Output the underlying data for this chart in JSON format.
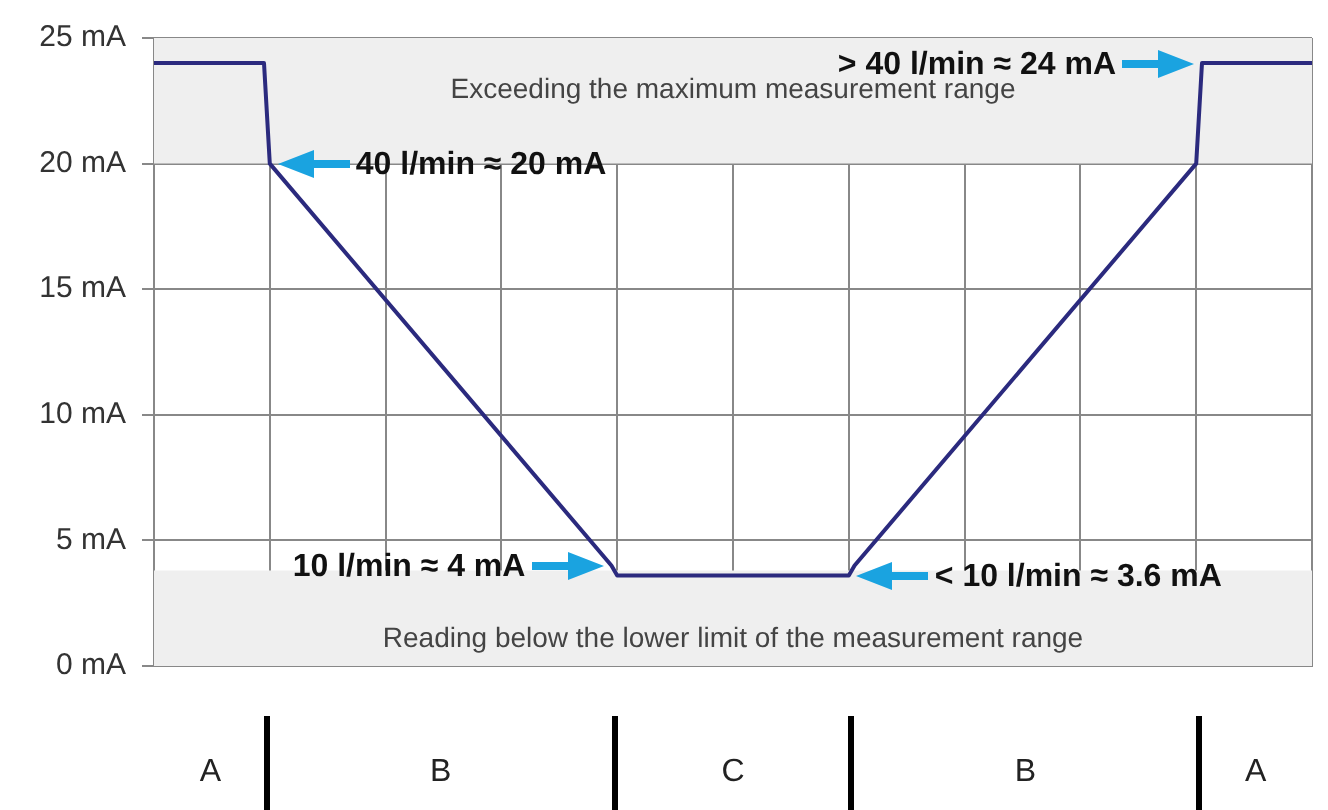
{
  "chart_data": {
    "type": "line",
    "categories": [
      null,
      null,
      null,
      null,
      null,
      null,
      null,
      null,
      null,
      null,
      null,
      null,
      null,
      null,
      null,
      null,
      null,
      null,
      null,
      null,
      null,
      null,
      null,
      null,
      null,
      null,
      null,
      null,
      null,
      null,
      null,
      null,
      null,
      null,
      null,
      null,
      null,
      null,
      null,
      null,
      null,
      null,
      null,
      null,
      null,
      null,
      null,
      null,
      null,
      null,
      null,
      null,
      null,
      null,
      null,
      null,
      null,
      null,
      null,
      null,
      null,
      null,
      null,
      null,
      null,
      null,
      null,
      null,
      null,
      null,
      null,
      null,
      null,
      null,
      null,
      null,
      null,
      null,
      null,
      null,
      null,
      null,
      null,
      null,
      null,
      null,
      null,
      null,
      null,
      null,
      null,
      null,
      null,
      null,
      null,
      null,
      null,
      null,
      null,
      null,
      null,
      null,
      null,
      null,
      null,
      null,
      null,
      null,
      null,
      null,
      null,
      null,
      null,
      null,
      null,
      null,
      null,
      null,
      null,
      null,
      null,
      null,
      null,
      null,
      null,
      null,
      null,
      null,
      null,
      null,
      null,
      null,
      null,
      null,
      null,
      null,
      null,
      null,
      null,
      null,
      null,
      null,
      null,
      null,
      null,
      null,
      null,
      null,
      null,
      null,
      null,
      null,
      null,
      null,
      null,
      null,
      null,
      null,
      null,
      null,
      null,
      null,
      null,
      null,
      null,
      null,
      null,
      null,
      null,
      null,
      null,
      null,
      null,
      null,
      null,
      null,
      null,
      null,
      null,
      null,
      null,
      null,
      null,
      null,
      null,
      null,
      null,
      null,
      null,
      null,
      null,
      null,
      null,
      null,
      null,
      null,
      null,
      null,
      null,
      null,
      null
    ],
    "values": [
      24,
      null,
      null,
      null,
      null,
      null,
      null,
      null,
      null,
      null,
      null,
      null,
      null,
      null,
      null,
      null,
      null,
      null,
      null,
      24,
      20,
      null,
      null,
      null,
      null,
      null,
      null,
      null,
      null,
      null,
      null,
      null,
      null,
      null,
      null,
      null,
      null,
      null,
      null,
      null,
      null,
      null,
      null,
      null,
      null,
      null,
      null,
      null,
      null,
      null,
      null,
      null,
      null,
      null,
      null,
      null,
      null,
      null,
      null,
      null,
      null,
      null,
      null,
      null,
      null,
      null,
      null,
      null,
      null,
      null,
      null,
      null,
      null,
      null,
      null,
      null,
      null,
      null,
      null,
      4,
      3.6,
      null,
      null,
      null,
      null,
      null,
      null,
      null,
      null,
      null,
      null,
      null,
      null,
      null,
      null,
      null,
      null,
      null,
      null,
      null,
      null,
      null,
      null,
      null,
      null,
      null,
      null,
      null,
      null,
      null,
      null,
      null,
      null,
      null,
      null,
      null,
      null,
      null,
      null,
      null,
      3.6,
      4,
      null,
      null,
      null,
      null,
      null,
      null,
      null,
      null,
      null,
      null,
      null,
      null,
      null,
      null,
      null,
      null,
      null,
      null,
      null,
      null,
      null,
      null,
      null,
      null,
      null,
      null,
      null,
      null,
      null,
      null,
      null,
      null,
      null,
      null,
      null,
      null,
      null,
      null,
      null,
      null,
      null,
      null,
      null,
      null,
      null,
      null,
      null,
      null,
      null,
      null,
      null,
      null,
      null,
      null,
      null,
      null,
      null,
      null,
      20,
      24,
      null,
      null,
      null,
      null,
      null,
      null,
      null,
      null,
      null,
      null,
      null,
      null,
      null,
      null,
      null,
      null,
      null,
      null,
      24
    ],
    "color": "#2b2a7e",
    "ylim": [
      0,
      25
    ],
    "yticks": [
      {
        "value": 0,
        "label": "0 mA"
      },
      {
        "value": 5,
        "label": "5 mA"
      },
      {
        "value": 10,
        "label": "10 mA"
      },
      {
        "value": 15,
        "label": "15 mA"
      },
      {
        "value": 20,
        "label": "20 mA"
      },
      {
        "value": 25,
        "label": "25 mA"
      }
    ],
    "grid": true,
    "marker": "none",
    "line_style": "solid",
    "bands": [
      {
        "axis": "y",
        "from": 20,
        "to": 25,
        "label": "Exceeding the maximum measurement range",
        "color": "#efefef"
      },
      {
        "axis": "y",
        "from": 0,
        "to": 3.8,
        "label": "Reading below the lower limit of the measurement range",
        "color": "#efefef"
      }
    ],
    "annotations": [
      {
        "text": "40 l/min ≈ 20 mA",
        "y": 20
      },
      {
        "text": "10 l/min ≈ 4 mA",
        "y": 4
      },
      {
        "text": "< 10 l/min ≈ 3.6 mA",
        "y": 3.6
      },
      "> 40 l/min ≈ 24 mA",
      "A",
      "B",
      "C",
      "B",
      "A"
    ]
  }
}
